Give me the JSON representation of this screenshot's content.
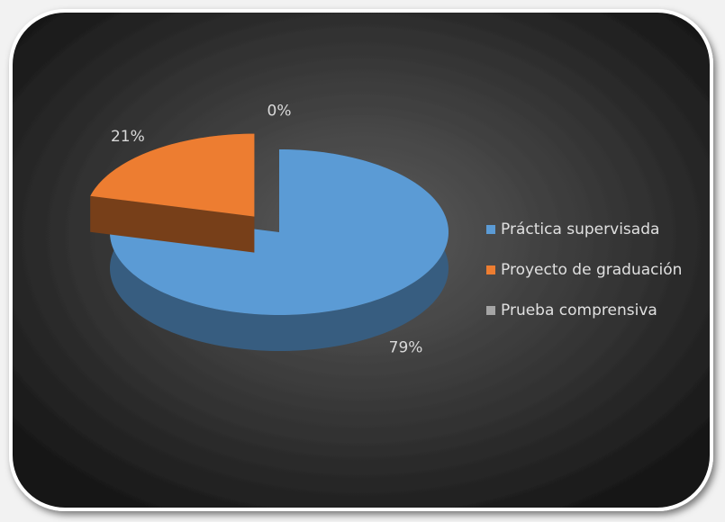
{
  "chart_data": {
    "type": "pie",
    "categories": [
      "Práctica supervisada",
      "Proyecto de graduación",
      "Prueba comprensiva"
    ],
    "values": [
      79,
      21,
      0
    ],
    "value_labels": [
      "79%",
      "21%",
      "0%"
    ],
    "colors": [
      "#5b9bd5",
      "#ed7d31",
      "#a5a5a5"
    ],
    "legend": "right"
  }
}
